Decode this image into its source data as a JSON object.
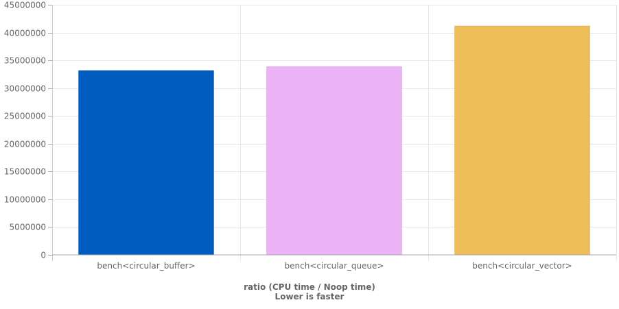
{
  "chart_data": {
    "type": "bar",
    "categories": [
      "bench<circular_buffer>",
      "bench<circular_queue>",
      "bench<circular_vector>"
    ],
    "values": [
      33200000,
      33900000,
      41200000
    ],
    "colors": [
      "#005cbf",
      "#ebb3f5",
      "#eebf58"
    ],
    "yticks": [
      "0",
      "5000000",
      "10000000",
      "15000000",
      "20000000",
      "25000000",
      "30000000",
      "35000000",
      "40000000",
      "45000000"
    ],
    "ylim": [
      0,
      45000000
    ],
    "title_lines": [
      "ratio (CPU time / Noop time)",
      "Lower is faster"
    ],
    "grid": true,
    "legend": "none"
  }
}
